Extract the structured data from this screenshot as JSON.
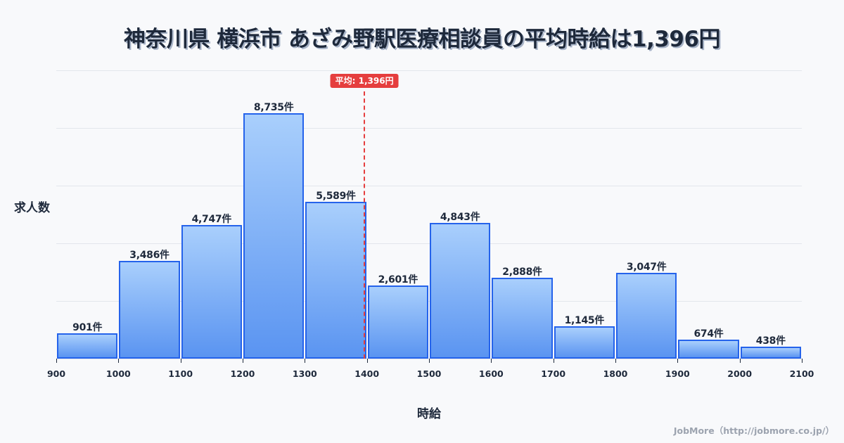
{
  "title": "神奈川県 横浜市 あざみ野駅医療相談員の平均時給は1,396円",
  "credit": "JobMore（http://jobmore.co.jp/）",
  "chart_data": {
    "type": "bar",
    "title": "神奈川県 横浜市 あざみ野駅医療相談員の平均時給は1,396円",
    "xlabel": "時給",
    "ylabel": "求人数",
    "bin_edges": [
      900,
      1000,
      1100,
      1200,
      1300,
      1400,
      1500,
      1600,
      1700,
      1800,
      1900,
      2000,
      2100
    ],
    "categories": [
      "900-1000",
      "1000-1100",
      "1100-1200",
      "1200-1300",
      "1300-1400",
      "1400-1500",
      "1500-1600",
      "1600-1700",
      "1700-1800",
      "1800-1900",
      "1900-2000",
      "2000-2100"
    ],
    "values": [
      901,
      3486,
      4747,
      8735,
      5589,
      2601,
      4843,
      2888,
      1145,
      3047,
      674,
      438
    ],
    "value_labels": [
      "901件",
      "3,486件",
      "4,747件",
      "8,735件",
      "5,589件",
      "2,601件",
      "4,843件",
      "2,888件",
      "1,145件",
      "3,047件",
      "674件",
      "438件"
    ],
    "tick_labels": [
      "900",
      "1000",
      "1100",
      "1200",
      "1300",
      "1400",
      "1500",
      "1600",
      "1700",
      "1800",
      "1900",
      "2000",
      "2100"
    ],
    "xlim": [
      900,
      2100
    ],
    "grid": true,
    "average": {
      "value": 1396,
      "label": "平均: 1,396円",
      "color": "#e53e3e"
    },
    "bar_color": "#5a94f1",
    "bar_border_color": "#2563eb"
  }
}
